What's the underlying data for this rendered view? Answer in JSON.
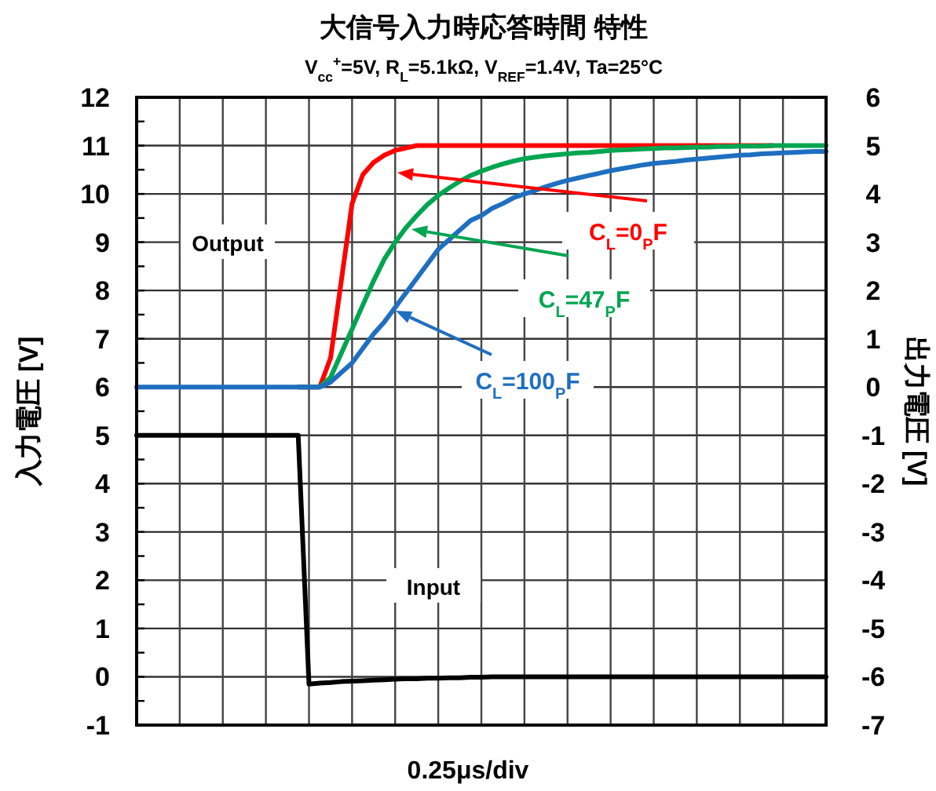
{
  "chart_data": {
    "type": "line",
    "title": "大信号入力時応答時間 特性",
    "subtitle": "V$_{cc}$$^{+}$=5V, R$_{L}$=5.1kΩ, V$_{REF}$=1.4V, Ta=25°C",
    "xlabel": "0.25μs/div",
    "ylabel": "入力電圧 [V]",
    "y2label": "出力電圧 [V]",
    "annotations": [
      "Output",
      "Input"
    ],
    "categories": [
      null,
      null,
      null,
      null,
      null,
      null,
      null,
      null,
      null,
      null,
      null,
      null,
      null,
      null,
      null,
      null,
      null,
      null,
      null,
      null,
      null,
      null,
      null,
      null,
      null,
      null,
      null,
      null,
      null,
      null,
      null,
      null,
      null,
      null,
      null,
      null,
      null,
      null,
      null,
      null,
      null,
      null,
      null,
      null,
      null,
      null,
      null,
      null,
      null,
      null,
      null,
      null,
      null,
      null,
      null,
      null,
      null,
      null,
      null,
      null,
      null,
      null,
      null,
      null,
      null
    ],
    "series": [
      {
        "name": "C$_{L}$=0$_{P}$F",
        "color": "#ff0000",
        "axis": "y2",
        "values": [
          null,
          null,
          null,
          null,
          null,
          null,
          null,
          null,
          null,
          null,
          null,
          null,
          null,
          null,
          null,
          0,
          0,
          0,
          0.6,
          2.2,
          3.8,
          4.4,
          4.65,
          4.8,
          4.9,
          4.95,
          5,
          5,
          5,
          5,
          5,
          5,
          5,
          5,
          5,
          5,
          5,
          5,
          5,
          5,
          5,
          5,
          5,
          5,
          5,
          5,
          5,
          5,
          5,
          5,
          5,
          5,
          5,
          5,
          5,
          5,
          5,
          5,
          5,
          5,
          null,
          null,
          null,
          null,
          null
        ]
      },
      {
        "name": "C$_{L}$=47$_{P}$F",
        "color": "#00a550",
        "axis": "y2",
        "values": [
          null,
          null,
          null,
          null,
          null,
          null,
          null,
          null,
          null,
          null,
          null,
          null,
          null,
          null,
          null,
          0,
          0,
          0,
          0.2,
          0.7,
          1.2,
          1.7,
          2.2,
          2.65,
          3.0,
          3.3,
          3.55,
          3.78,
          3.97,
          4.12,
          4.26,
          4.38,
          4.47,
          4.55,
          4.62,
          4.68,
          4.73,
          4.76,
          4.79,
          4.81,
          4.83,
          4.85,
          4.86,
          4.88,
          4.9,
          4.91,
          4.92,
          4.93,
          4.94,
          4.95,
          4.95,
          4.96,
          4.97,
          4.97,
          4.98,
          4.98,
          4.99,
          4.99,
          4.99,
          5,
          5,
          5,
          5,
          5,
          5
        ]
      },
      {
        "name": "C$_{L}$=100$_{P}$F",
        "color": "#1f6fc0",
        "axis": "y2",
        "values": [
          0,
          0,
          0,
          0,
          0,
          0,
          0,
          0,
          0,
          0,
          0,
          0,
          0,
          0,
          0,
          0,
          0,
          0,
          0.1,
          0.3,
          0.5,
          0.8,
          1.1,
          1.35,
          1.65,
          1.95,
          2.25,
          2.55,
          2.85,
          3.05,
          3.25,
          3.45,
          3.55,
          3.7,
          3.8,
          3.92,
          4.0,
          4.07,
          4.15,
          4.22,
          4.28,
          4.33,
          4.38,
          4.43,
          4.48,
          4.52,
          4.56,
          4.6,
          4.63,
          4.65,
          4.67,
          4.7,
          4.72,
          4.74,
          4.76,
          4.78,
          4.8,
          4.81,
          4.83,
          4.84,
          4.85,
          4.86,
          4.87,
          4.88,
          4.88
        ]
      },
      {
        "color": "#000000",
        "values": [
          5,
          5,
          5,
          5,
          5,
          5,
          5,
          5,
          5,
          5,
          5,
          5,
          5,
          5,
          5,
          5,
          -0.15,
          -0.13,
          -0.12,
          -0.1,
          -0.09,
          -0.08,
          -0.07,
          -0.06,
          -0.05,
          -0.04,
          -0.04,
          -0.03,
          -0.03,
          -0.02,
          -0.02,
          -0.01,
          -0.01,
          0,
          0,
          0,
          0,
          0,
          0,
          0,
          0,
          0,
          0,
          0,
          0,
          0,
          0,
          0,
          0,
          0,
          0,
          0,
          0,
          0,
          0,
          0,
          0,
          0,
          0,
          0,
          0,
          0,
          0,
          0,
          0
        ]
      }
    ],
    "ylim": [
      -1,
      12
    ],
    "yticks": [
      -1,
      {
        "value": -0.5,
        "label": null
      },
      0,
      {
        "value": 0.5,
        "label": null
      },
      1,
      {
        "value": 1.5,
        "label": null
      },
      2,
      {
        "value": 2.5,
        "label": null
      },
      3,
      {
        "value": 3.5,
        "label": null
      },
      4,
      {
        "value": 4.5,
        "label": null
      },
      5,
      {
        "value": 5.5,
        "label": null
      },
      6,
      {
        "value": 6.5,
        "label": null
      },
      7,
      {
        "value": 7.5,
        "label": null
      },
      8,
      {
        "value": 8.5,
        "label": null
      },
      9,
      {
        "value": 9.5,
        "label": null
      },
      10,
      {
        "value": 10.5,
        "label": null
      },
      11,
      {
        "value": 11.5,
        "label": null
      },
      12
    ],
    "y2lim": [
      -7,
      6
    ],
    "y2ticks": [
      -7,
      -6,
      -5,
      -4,
      -3,
      -2,
      -1,
      0,
      1,
      2,
      3,
      4,
      5,
      6
    ],
    "grid": true,
    "legend": false,
    "line_style": "solid",
    "marker": "none"
  }
}
